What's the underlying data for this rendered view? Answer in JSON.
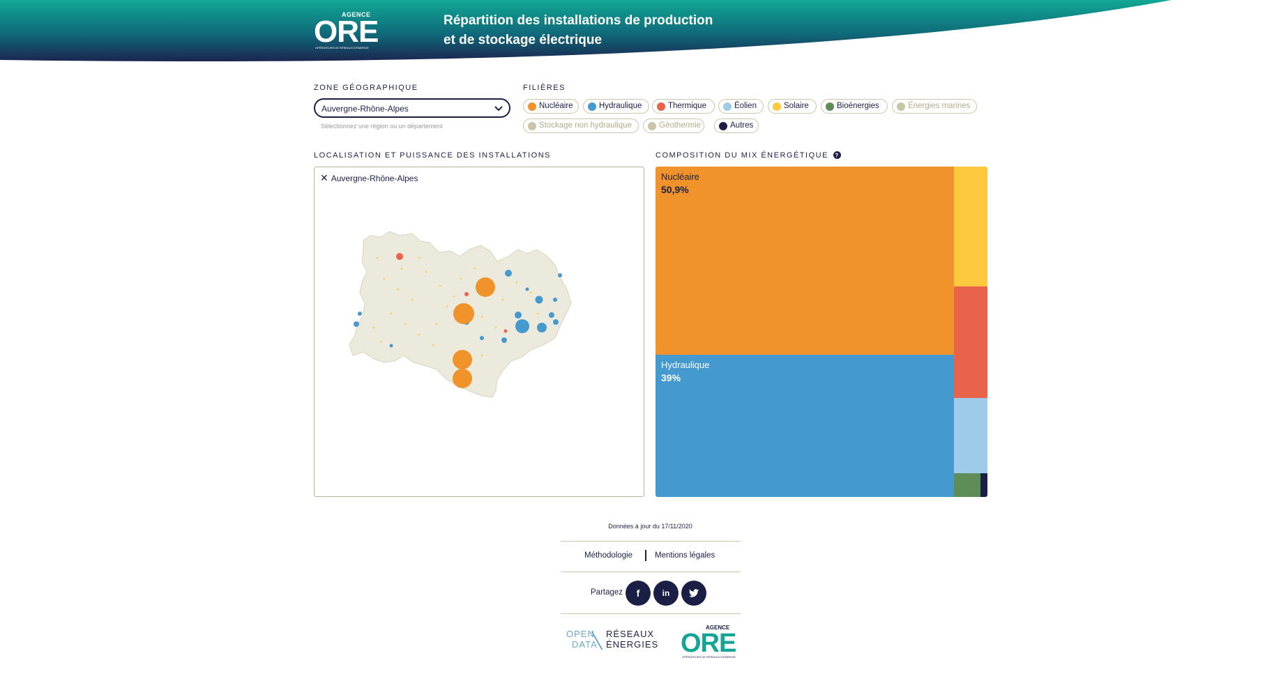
{
  "header": {
    "logo_top": "AGENCE",
    "logo_main": "ORE",
    "logo_sub": "OPÉRATEURS DE RÉSEAUX D'ÉNERGIE",
    "title_line1": "Répartition des installations de production",
    "title_line2": "et de stockage électrique"
  },
  "filters": {
    "zone_label": "ZONE GÉOGRAPHIQUE",
    "zone_value": "Auvergne-Rhône-Alpes",
    "zone_help": "Sélectionnez une région ou un département",
    "filieres_label": "FILIÈRES",
    "chips": [
      {
        "label": "Nucléaire",
        "color": "#ef932a",
        "active": true
      },
      {
        "label": "Hydraulique",
        "color": "#4499cf",
        "active": true
      },
      {
        "label": "Thermique",
        "color": "#e8634a",
        "active": true
      },
      {
        "label": "Éolien",
        "color": "#9ecbea",
        "active": true
      },
      {
        "label": "Solaire",
        "color": "#fcc93f",
        "active": true
      },
      {
        "label": "Bioénergies",
        "color": "#5f8d58",
        "active": true
      },
      {
        "label": "Énergies marines",
        "color": "#c9c5a8",
        "active": false
      },
      {
        "label": "Stockage non hydraulique",
        "color": "#c9c5a8",
        "active": false
      },
      {
        "label": "Géothermie",
        "color": "#c9c5a8",
        "active": false
      },
      {
        "label": "Autres",
        "color": "#1c1f45",
        "active": true
      }
    ]
  },
  "map": {
    "section_label": "LOCALISATION ET PUISSANCE DES INSTALLATIONS",
    "tag_close": "✕",
    "tag_label": "Auvergne-Rhône-Alpes"
  },
  "mix": {
    "section_label": "COMPOSITION DU MIX ÉNERGÉTIQUE",
    "help_icon": "question-circle-icon",
    "cells": [
      {
        "label": "Nucléaire",
        "value": "50,9%",
        "color": "#ef932a"
      },
      {
        "label": "Hydraulique",
        "value": "39%",
        "color": "#4499cf"
      },
      {
        "label": "",
        "value": "",
        "color": "#fcc93f"
      },
      {
        "label": "",
        "value": "",
        "color": "#e8634a"
      },
      {
        "label": "",
        "value": "",
        "color": "#9ecbea"
      },
      {
        "label": "",
        "value": "",
        "color": "#5f8d58"
      },
      {
        "label": "",
        "value": "",
        "color": "#1c1f45"
      }
    ]
  },
  "footer": {
    "date_text": "Données à jour du 17/11/2020",
    "link_methodology": "Méthodologie",
    "link_legal": "Mentions légales",
    "share_label": "Partagez",
    "share_facebook": "f",
    "share_linkedin": "in",
    "share_twitter": "t",
    "opendata_left_1": "OPEN",
    "opendata_left_2": "DATA",
    "opendata_right_1": "RÉSEAUX",
    "opendata_right_2": "ÉNERGIES",
    "logo_top": "AGENCE",
    "logo_main": "ORE",
    "logo_sub": "OPÉRATEURS DE RÉSEAUX D'ÉNERGIE"
  }
}
